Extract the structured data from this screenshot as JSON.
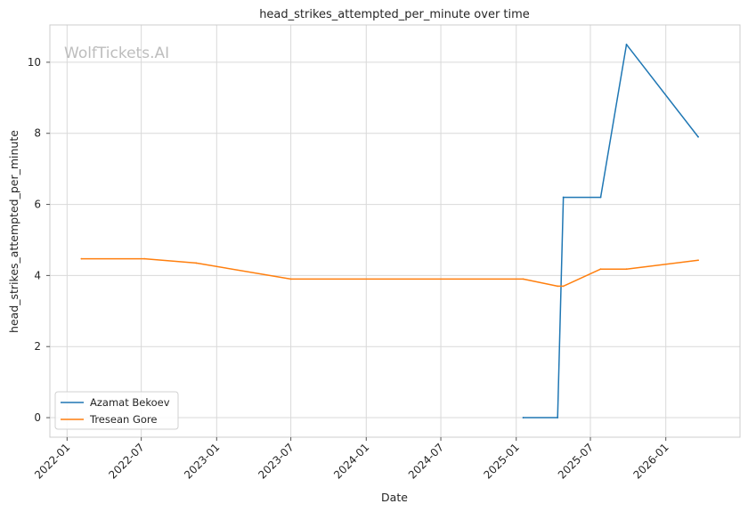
{
  "chart_data": {
    "type": "line",
    "title": "head_strikes_attempted_per_minute over time",
    "xlabel": "Date",
    "ylabel": "head_strikes_attempted_per_minute",
    "watermark": "WolfTickets.AI",
    "x_ticks": [
      "2022-01",
      "2022-07",
      "2023-01",
      "2023-07",
      "2024-01",
      "2024-07",
      "2025-01",
      "2025-07",
      "2026-01"
    ],
    "y_ticks": [
      0,
      2,
      4,
      6,
      8,
      10
    ],
    "xlim": [
      "2021-11-20",
      "2026-07-01"
    ],
    "ylim": [
      -0.55,
      11.05
    ],
    "grid": true,
    "legend_position": "lower-left",
    "series": [
      {
        "name": "Azamat Bekoev",
        "color": "#1f77b4",
        "points": [
          {
            "x": "2025-01-18",
            "y": 0.0
          },
          {
            "x": "2025-04-12",
            "y": 0.0
          },
          {
            "x": "2025-04-26",
            "y": 6.2
          },
          {
            "x": "2025-07-26",
            "y": 6.2
          },
          {
            "x": "2025-09-27",
            "y": 10.5
          },
          {
            "x": "2026-03-21",
            "y": 7.9
          }
        ]
      },
      {
        "name": "Tresean Gore",
        "color": "#ff7f0e",
        "points": [
          {
            "x": "2022-02-05",
            "y": 4.47
          },
          {
            "x": "2022-07-09",
            "y": 4.47
          },
          {
            "x": "2022-11-12",
            "y": 4.35
          },
          {
            "x": "2023-07-01",
            "y": 3.9
          },
          {
            "x": "2025-01-18",
            "y": 3.9
          },
          {
            "x": "2025-04-12",
            "y": 3.7
          },
          {
            "x": "2025-04-26",
            "y": 3.7
          },
          {
            "x": "2025-07-26",
            "y": 4.18
          },
          {
            "x": "2025-09-27",
            "y": 4.18
          },
          {
            "x": "2026-03-21",
            "y": 4.43
          }
        ]
      }
    ]
  }
}
